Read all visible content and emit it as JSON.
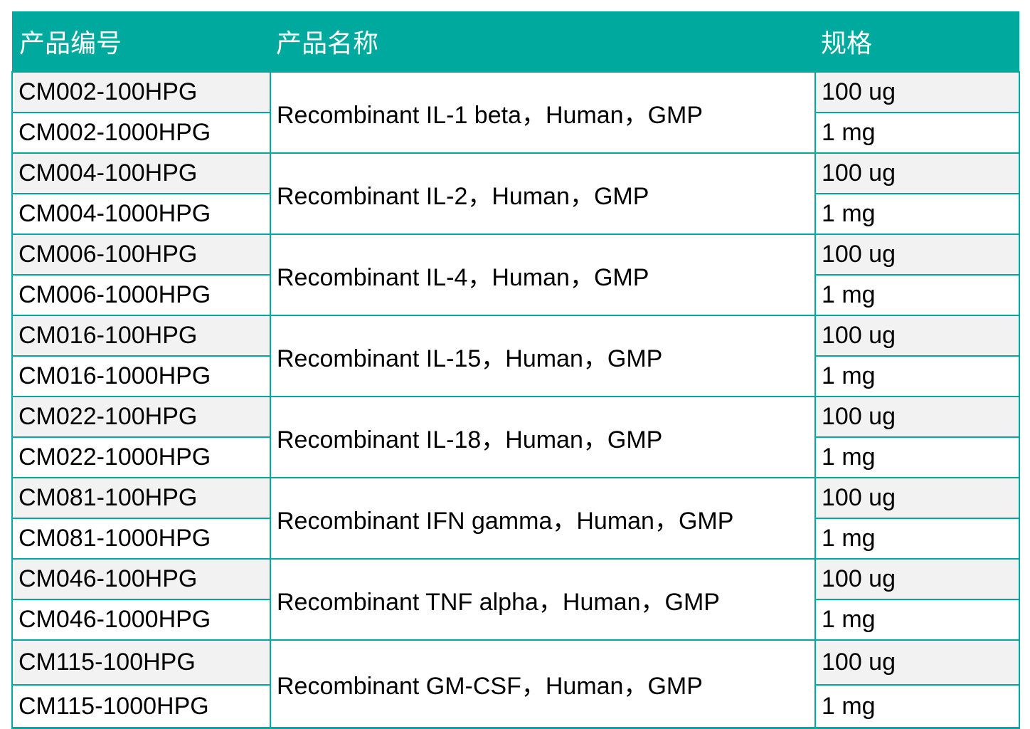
{
  "header": {
    "col_code": "产品编号",
    "col_name": "产品名称",
    "col_spec": "规格"
  },
  "products": [
    {
      "name": "Recombinant IL-1 beta，Human，GMP",
      "skus": [
        {
          "code": "CM002-100HPG",
          "spec": "100 ug"
        },
        {
          "code": "CM002-1000HPG",
          "spec": "1 mg"
        }
      ]
    },
    {
      "name": "Recombinant IL-2，Human，GMP",
      "skus": [
        {
          "code": "CM004-100HPG",
          "spec": "100 ug"
        },
        {
          "code": "CM004-1000HPG",
          "spec": "1 mg"
        }
      ]
    },
    {
      "name": "Recombinant IL-4，Human，GMP",
      "skus": [
        {
          "code": "CM006-100HPG",
          "spec": "100 ug"
        },
        {
          "code": "CM006-1000HPG",
          "spec": "1 mg"
        }
      ]
    },
    {
      "name": "Recombinant IL-15，Human，GMP",
      "skus": [
        {
          "code": "CM016-100HPG",
          "spec": "100 ug"
        },
        {
          "code": "CM016-1000HPG",
          "spec": "1 mg"
        }
      ]
    },
    {
      "name": "Recombinant IL-18，Human，GMP",
      "skus": [
        {
          "code": "CM022-100HPG",
          "spec": "100 ug"
        },
        {
          "code": "CM022-1000HPG",
          "spec": "1 mg"
        }
      ]
    },
    {
      "name": "Recombinant IFN gamma，Human，GMP",
      "skus": [
        {
          "code": "CM081-100HPG",
          "spec": "100 ug"
        },
        {
          "code": "CM081-1000HPG",
          "spec": "1 mg"
        }
      ]
    },
    {
      "name": "Recombinant TNF alpha，Human，GMP",
      "skus": [
        {
          "code": "CM046-100HPG",
          "spec": "100 ug"
        },
        {
          "code": "CM046-1000HPG",
          "spec": "1 mg"
        }
      ]
    },
    {
      "name": "Recombinant GM-CSF，Human，GMP",
      "skus": [
        {
          "code": "CM115-100HPG",
          "spec": "100 ug"
        },
        {
          "code": "CM115-1000HPG",
          "spec": "1 mg"
        }
      ]
    }
  ],
  "colors": {
    "header_bg": "#00a99d",
    "header_text": "#ffffff",
    "stripe_bg": "#f2f2f2",
    "border": "#00a99d"
  }
}
